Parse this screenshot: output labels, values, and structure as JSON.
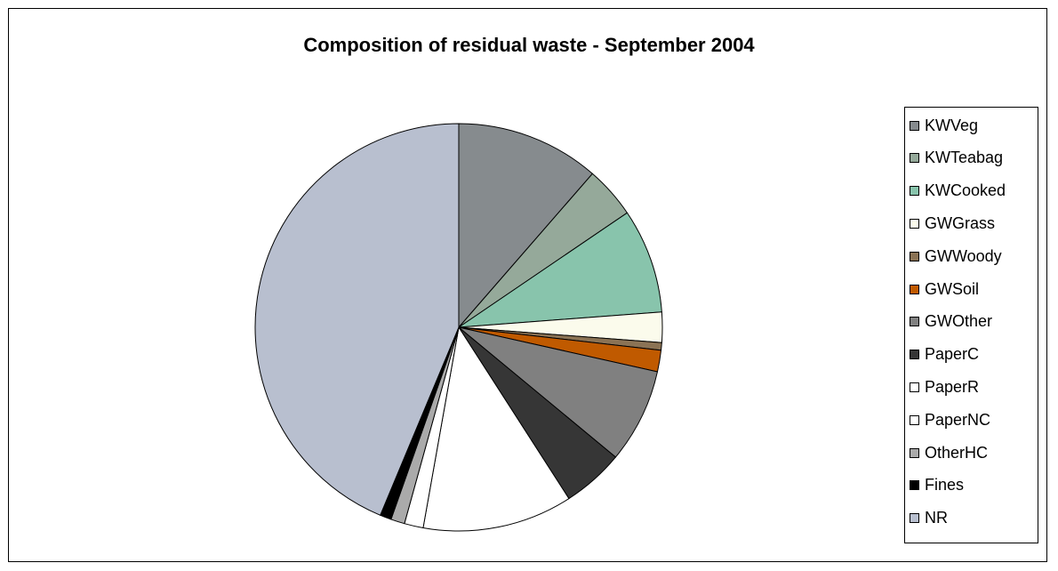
{
  "chart_data": {
    "type": "pie",
    "title": "Composition of residual waste - September 2004",
    "legend_position": "right",
    "categories": [
      "KWVeg",
      "KWTeabag",
      "KWCooked",
      "GWGrass",
      "GWWoody",
      "GWSoil",
      "GWOther",
      "PaperC",
      "PaperR",
      "PaperNC",
      "OtherHC",
      "Fines",
      "NR"
    ],
    "values": [
      11.4,
      4.1,
      8.3,
      2.4,
      0.6,
      1.7,
      7.5,
      4.9,
      11.9,
      1.5,
      1.1,
      0.9,
      43.7
    ],
    "colors": [
      "#868b8e",
      "#95a99a",
      "#88c4ac",
      "#fbfbec",
      "#8b7355",
      "#c05a00",
      "#808080",
      "#363636",
      "#ffffff",
      "#ffffff",
      "#aaaaaa",
      "#000000",
      "#b8bfcf"
    ]
  }
}
